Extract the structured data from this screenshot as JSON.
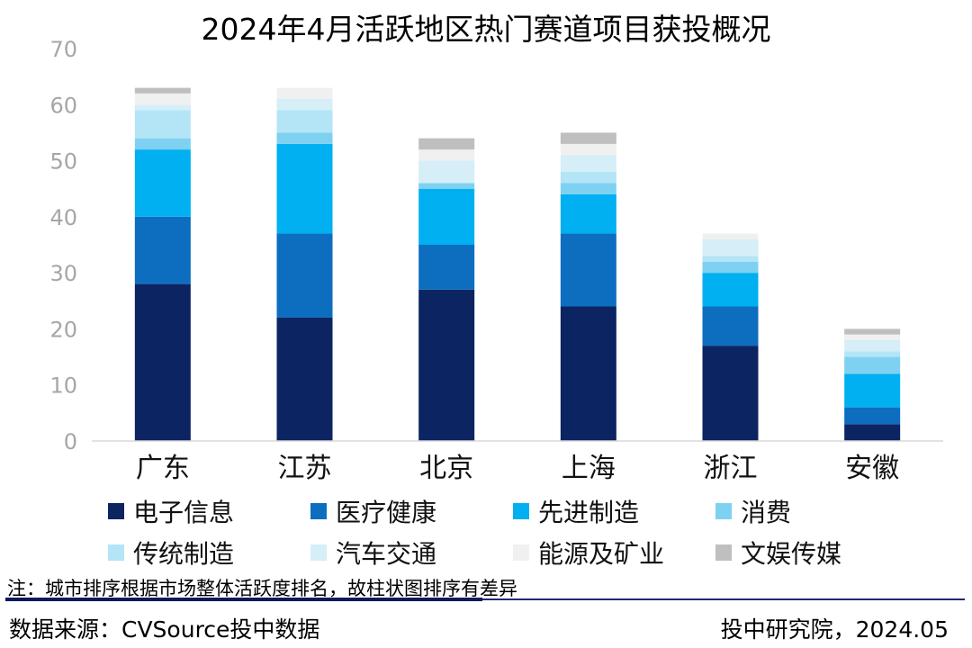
{
  "chart_data": {
    "type": "bar",
    "stacked": true,
    "title": "2024年4月活跃地区热门赛道项目获投概况",
    "categories": [
      "广东",
      "江苏",
      "北京",
      "上海",
      "浙江",
      "安徽"
    ],
    "ylim": [
      0,
      70
    ],
    "yticks": [
      "0",
      "10",
      "20",
      "30",
      "40",
      "50",
      "60",
      "70"
    ],
    "grid": false,
    "legend_position": "bottom",
    "series": [
      {
        "name": "电子信息",
        "color": "#0c2461",
        "values": [
          28,
          22,
          27,
          24,
          17,
          3
        ]
      },
      {
        "name": "医疗健康",
        "color": "#0d6ebf",
        "values": [
          12,
          15,
          8,
          13,
          7,
          3
        ]
      },
      {
        "name": "先进制造",
        "color": "#00b0f0",
        "values": [
          12,
          16,
          10,
          7,
          6,
          6
        ]
      },
      {
        "name": "消费",
        "color": "#7fd1f2",
        "values": [
          2,
          2,
          1,
          2,
          2,
          3
        ]
      },
      {
        "name": "传统制造",
        "color": "#b3e5f7",
        "values": [
          5,
          4,
          0,
          2,
          1,
          1
        ]
      },
      {
        "name": "汽车交通",
        "color": "#d5eef8",
        "values": [
          1,
          2,
          4,
          3,
          3,
          2
        ]
      },
      {
        "name": "能源及矿业",
        "color": "#f0f0f0",
        "values": [
          2,
          2,
          2,
          2,
          1,
          1
        ]
      },
      {
        "name": "文娱传媒",
        "color": "#bfbfbf",
        "values": [
          1,
          0,
          2,
          2,
          0,
          1
        ]
      }
    ]
  },
  "footer": {
    "note": "注：城市排序根据市场整体活跃度排名，故柱状图排序有差异",
    "source": "数据来源：CVSource投中数据",
    "credit": "投中研究院，2024.05"
  }
}
